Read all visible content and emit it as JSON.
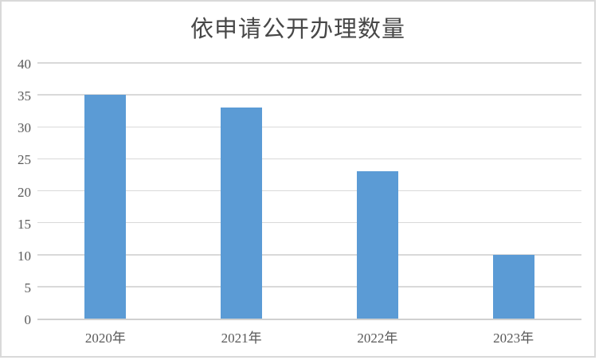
{
  "chart_data": {
    "type": "bar",
    "title": "依申请公开办理数量",
    "categories": [
      "2020年",
      "2021年",
      "2022年",
      "2023年"
    ],
    "values": [
      35,
      33,
      23,
      10
    ],
    "xlabel": "",
    "ylabel": "",
    "ylim": [
      0,
      40
    ],
    "yticks": [
      0,
      5,
      10,
      15,
      20,
      25,
      30,
      35,
      40
    ],
    "grid": true,
    "legend_position": "none",
    "bar_color": "#5b9bd5",
    "gridline_color": "#d9d9d9",
    "axis_line_color": "#d0d0d0",
    "tick_text_color": "#595959",
    "title_color": "#474747",
    "background_color": "#ffffff",
    "border_color": "#d9d9d9"
  }
}
